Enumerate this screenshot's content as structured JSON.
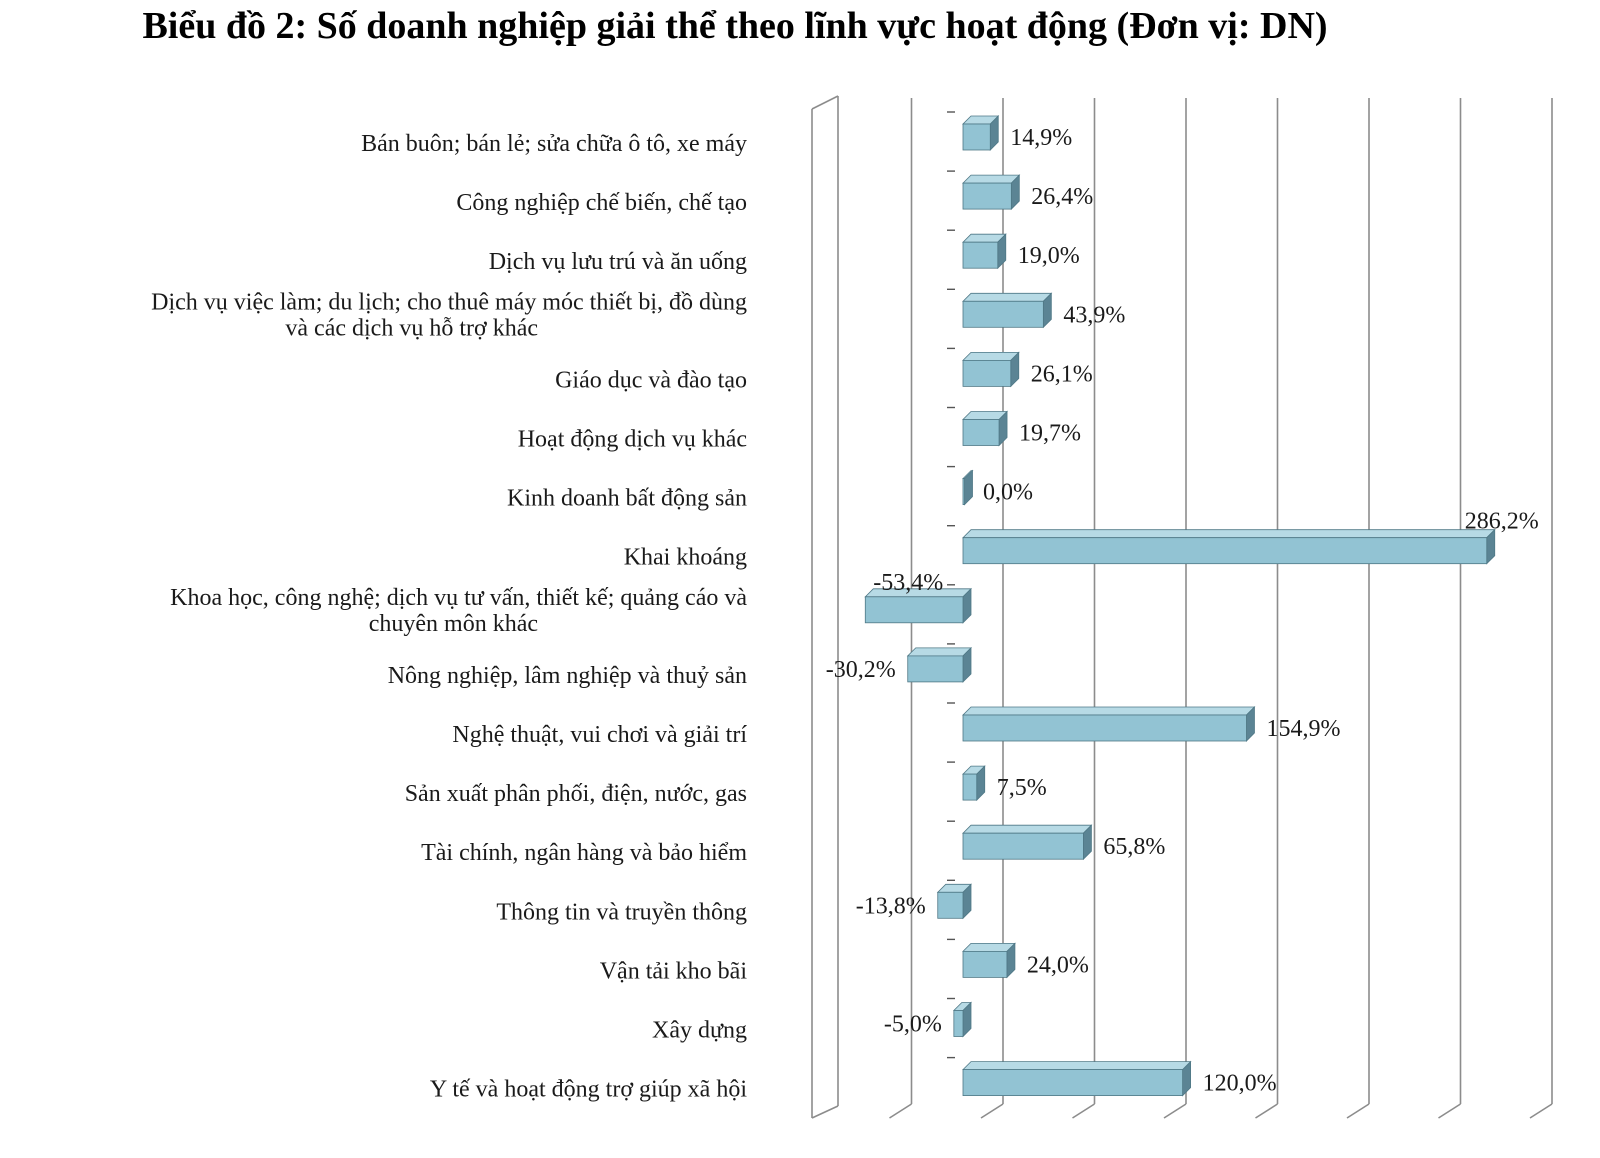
{
  "chart_data": {
    "type": "bar",
    "orientation": "horizontal",
    "title": "Biểu đồ 2: Số doanh nghiệp giải thể theo lĩnh vực hoạt động (Đơn vị: DN)",
    "categories": [
      [
        "Bán buôn; bán lẻ; sửa chữa ô tô, xe máy"
      ],
      [
        "Công nghiệp chế biến, chế tạo"
      ],
      [
        "Dịch vụ lưu trú và ăn uống"
      ],
      [
        "Dịch vụ việc làm; du lịch; cho thuê máy móc thiết bị, đồ dùng",
        "và các dịch vụ hỗ trợ khác"
      ],
      [
        "Giáo dục và đào tạo"
      ],
      [
        "Hoạt động dịch vụ khác"
      ],
      [
        "Kinh doanh bất động sản"
      ],
      [
        "Khai khoáng"
      ],
      [
        "Khoa học, công nghệ; dịch vụ tư vấn, thiết kế; quảng cáo và",
        "chuyên môn khác"
      ],
      [
        "Nông nghiệp,  lâm nghiệp và thuỷ sản"
      ],
      [
        "Nghệ thuật, vui chơi và giải trí"
      ],
      [
        "Sản xuất phân phối, điện, nước, gas"
      ],
      [
        "Tài chính, ngân hàng và bảo hiểm"
      ],
      [
        "Thông tin và truyền thông"
      ],
      [
        "Vận tải kho bãi"
      ],
      [
        "Xây dựng"
      ],
      [
        "Y tế và hoạt động trợ giúp xã hội"
      ]
    ],
    "values": [
      14.9,
      26.4,
      19.0,
      43.9,
      26.1,
      19.7,
      0.0,
      286.2,
      -53.4,
      -30.2,
      154.9,
      7.5,
      65.8,
      -13.8,
      24.0,
      -5.0,
      120.0
    ],
    "value_labels": [
      "14,9%",
      "26,4%",
      "19,0%",
      "43,9%",
      "26,1%",
      "19,7%",
      "0,0%",
      "286,2%",
      "-53,4%",
      "-30,2%",
      "154,9%",
      "7,5%",
      "65,8%",
      "-13,8%",
      "24,0%",
      "-5,0%",
      "120,0%"
    ],
    "xlim": [
      -100,
      300
    ],
    "gridlines_at": [
      -50,
      0,
      50,
      100,
      150,
      200,
      250,
      300
    ],
    "grid": true,
    "style": "3d",
    "colors": {
      "bar_front": "#92c3d3",
      "bar_side": "#5b8494",
      "bar_top": "#b7dae5",
      "bar_edge": "#4f7886",
      "grid": "#8c8c8c"
    }
  }
}
